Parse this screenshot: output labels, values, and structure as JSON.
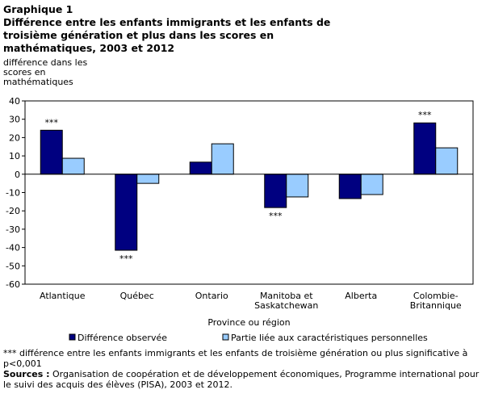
{
  "title_line1": "Graphique 1",
  "title": "Différence entre les enfants immigrants et les enfants de troisième génération et plus dans les scores en mathématiques, 2003 et 2012",
  "chart_data": {
    "type": "bar",
    "ylabel": "différence dans les scores en mathématiques",
    "xlabel": "Province ou région",
    "categories": [
      [
        "Atlantique"
      ],
      [
        "Québec"
      ],
      [
        "Ontario"
      ],
      [
        "Manitoba et",
        "Saskatchewan"
      ],
      [
        "Alberta"
      ],
      [
        "Colombie-",
        "Britannique"
      ]
    ],
    "ylim": [
      -60,
      40
    ],
    "yticks": [
      40,
      30,
      20,
      10,
      0,
      -10,
      -20,
      -30,
      -40,
      -50,
      -60
    ],
    "series": [
      {
        "name": "Différence observée",
        "color": "#000080",
        "values": [
          24.0,
          -41.5,
          6.6,
          -18.2,
          -13.3,
          28.0
        ],
        "significance": [
          "***",
          "***",
          "",
          "***",
          "",
          "***"
        ]
      },
      {
        "name": "Partie liée aux caractéristiques personnelles",
        "color": "#99ccff",
        "values": [
          8.7,
          -5.0,
          16.6,
          -12.4,
          -11.1,
          14.4
        ]
      }
    ],
    "legend": "bottom",
    "grid": false
  },
  "footnote": "*** différence entre les enfants immigrants et les enfants de troisième génération ou plus significative à p<0,001",
  "sources_label": "Sources :",
  "sources": " Organisation de coopération et de développement économiques, Programme international pour le suivi des acquis des élèves (PISA), 2003 et 2012."
}
